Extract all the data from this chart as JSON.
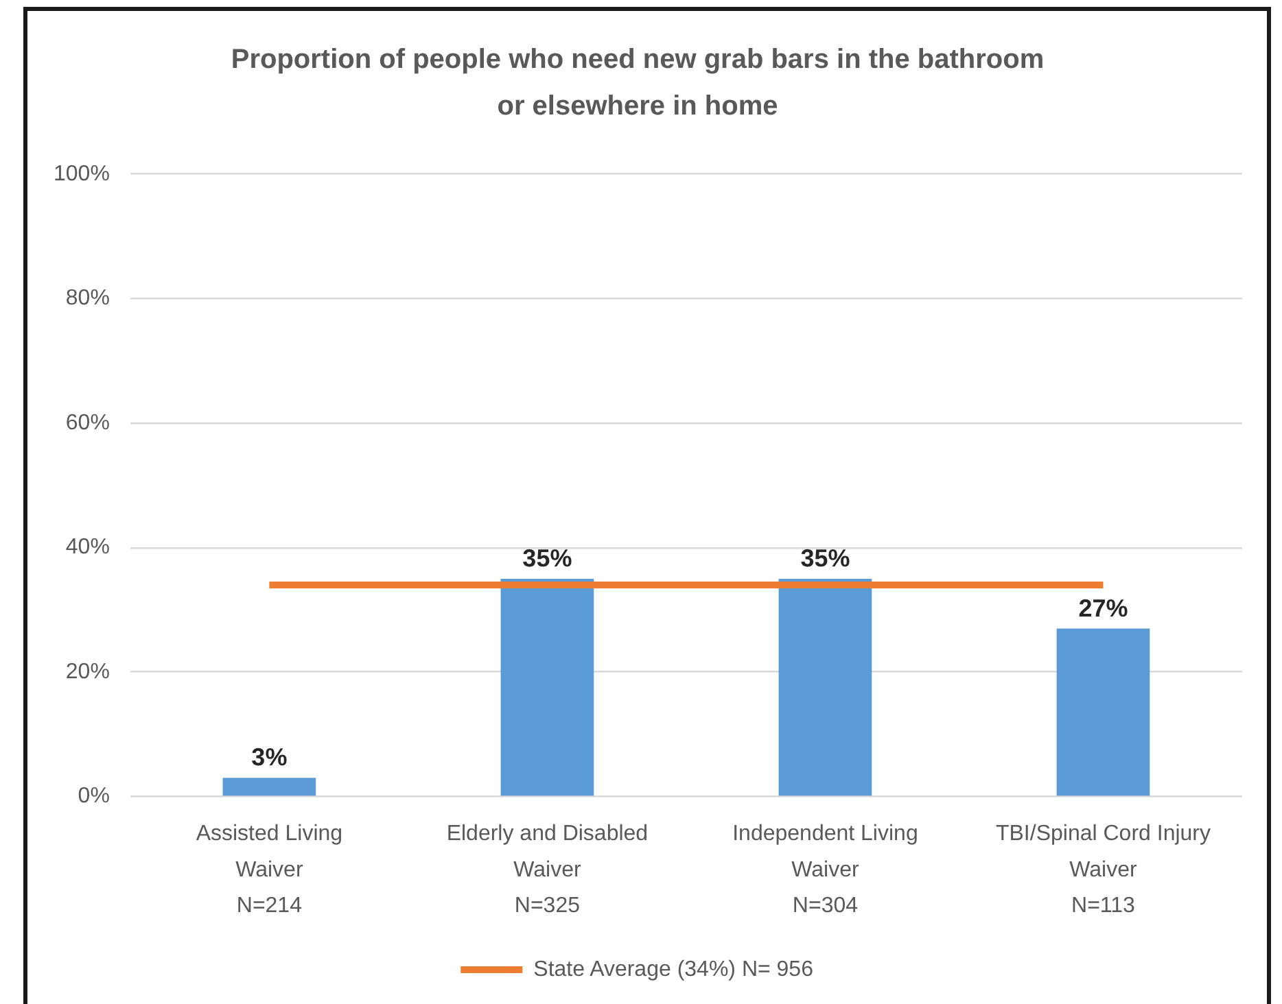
{
  "chart_data": {
    "type": "bar",
    "title": "Proportion of people who need new grab bars in the bathroom or elsewhere in home",
    "categories": [
      "Assisted Living\nWaiver\nN=214",
      "Elderly and Disabled\nWaiver\nN=325",
      "Independent Living\nWaiver\nN=304",
      "TBI/Spinal Cord Injury\nWaiver\nN=113"
    ],
    "series": [
      {
        "color": "#5b9bd5",
        "values": [
          3,
          35,
          35,
          27
        ],
        "value_labels": [
          "3%",
          "35%",
          "35%",
          "27%"
        ]
      },
      {
        "type": "line",
        "name": "State Average (34%) N= 956",
        "color": "#ed7d31",
        "values": [
          34,
          34,
          34,
          34
        ]
      }
    ],
    "ylim": [
      0,
      100
    ],
    "yticks": [
      {
        "value": 0,
        "label": "0%"
      },
      {
        "value": 20,
        "label": "20%"
      },
      {
        "value": 40,
        "label": "40%"
      },
      {
        "value": 60,
        "label": "60%"
      },
      {
        "value": 80,
        "label": "80%"
      },
      {
        "value": 100,
        "label": "100%"
      }
    ],
    "grid": "y",
    "legend": "bottom",
    "marker": "none"
  }
}
